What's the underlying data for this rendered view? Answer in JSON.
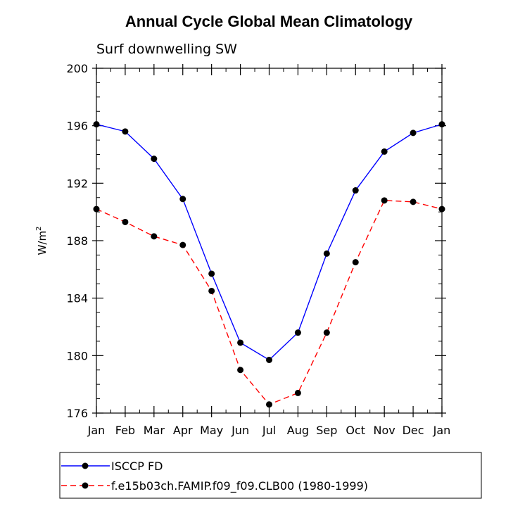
{
  "chart_data": {
    "type": "line",
    "title": "Annual Cycle Global Mean Climatology",
    "subtitle": "Surf downwelling SW",
    "ylabel": "W/m",
    "ylabel_superscript": "2",
    "xlabel": "",
    "categories": [
      "Jan",
      "Feb",
      "Mar",
      "Apr",
      "May",
      "Jun",
      "Jul",
      "Aug",
      "Sep",
      "Oct",
      "Nov",
      "Dec",
      "Jan"
    ],
    "ylim": [
      176,
      200
    ],
    "yticks": [
      "176",
      "180",
      "184",
      "188",
      "192",
      "196",
      "200"
    ],
    "grid": false,
    "legend_position": "bottom",
    "series": [
      {
        "name": "ISCCP FD",
        "color": "#0000ff",
        "dash": "solid",
        "values": [
          196.1,
          195.6,
          193.7,
          190.9,
          185.7,
          180.9,
          179.7,
          181.6,
          187.1,
          191.5,
          194.2,
          195.5,
          196.1
        ]
      },
      {
        "name": "f.e15b03ch.FAMIP.f09_f09.CLB00 (1980-1999)",
        "color": "#ff0000",
        "dash": "dashed",
        "values": [
          190.2,
          189.3,
          188.3,
          187.7,
          184.5,
          179.0,
          176.6,
          177.4,
          181.6,
          186.5,
          190.8,
          190.7,
          190.2
        ]
      }
    ]
  }
}
